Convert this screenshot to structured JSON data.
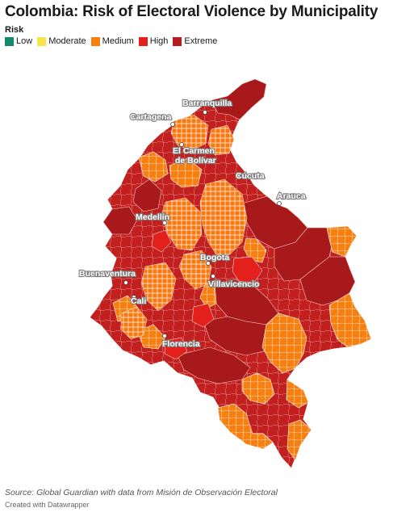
{
  "title": "Colombia: Risk of Electoral Violence by Municipality",
  "legend": {
    "title": "Risk",
    "items": [
      {
        "label": "Low",
        "color": "#0f8a6c"
      },
      {
        "label": "Moderate",
        "color": "#f7e34a"
      },
      {
        "label": "Medium",
        "color": "#f77f10"
      },
      {
        "label": "High",
        "color": "#e3201b"
      },
      {
        "label": "Extreme",
        "color": "#b91c1c"
      }
    ]
  },
  "cities": [
    {
      "id": "barranquilla",
      "name": "Barranquilla"
    },
    {
      "id": "cartagena",
      "name": "Cartagena"
    },
    {
      "id": "el-carmen",
      "name": "El Carmen\nde Bolívar"
    },
    {
      "id": "cucuta",
      "name": "Cúcuta"
    },
    {
      "id": "arauca",
      "name": "Arauca"
    },
    {
      "id": "medellin",
      "name": "Medellín"
    },
    {
      "id": "bogota",
      "name": "Bogota"
    },
    {
      "id": "buenaventura",
      "name": "Buenaventura"
    },
    {
      "id": "villavicencio",
      "name": "Villavicencio"
    },
    {
      "id": "cali",
      "name": "Cali"
    },
    {
      "id": "florencia",
      "name": "Florencia"
    }
  ],
  "source": "Source: Global Guardian with data from Misión de Observación Electoral",
  "credit": "Created with Datawrapper"
}
